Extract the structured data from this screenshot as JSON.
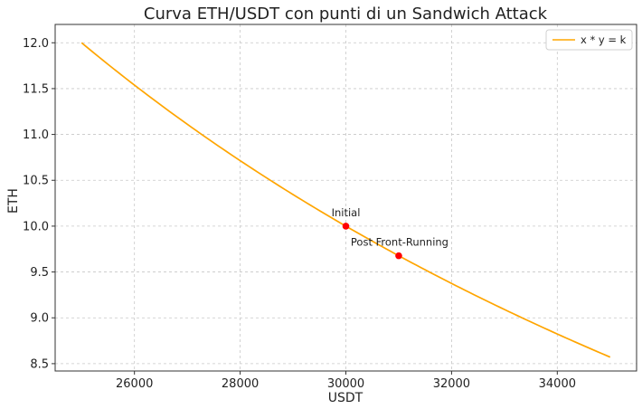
{
  "chart_data": {
    "type": "line",
    "title": "Curva ETH/USDT con punti di un Sandwich Attack",
    "xlabel": "USDT",
    "ylabel": "ETH",
    "xlim": [
      24500,
      35500
    ],
    "ylim": [
      8.42,
      12.2
    ],
    "xticks": [
      26000,
      28000,
      30000,
      32000,
      34000
    ],
    "xtick_labels": [
      "26000",
      "28000",
      "30000",
      "32000",
      "34000"
    ],
    "yticks": [
      8.5,
      9.0,
      9.5,
      10.0,
      10.5,
      11.0,
      11.5,
      12.0
    ],
    "ytick_labels": [
      "8.5",
      "9.0",
      "9.5",
      "10.0",
      "10.5",
      "11.0",
      "11.5",
      "12.0"
    ],
    "grid": true,
    "legend_position": "top-right",
    "curve_color": "#FFA500",
    "point_color": "#FF0000",
    "series": [
      {
        "name": "x * y = k",
        "k": 300000,
        "x_range": [
          25000,
          35000
        ]
      }
    ],
    "points": [
      {
        "label": "Initial",
        "x": 30000,
        "y": 10.0
      },
      {
        "label": "Post Front-Running",
        "x": 31000,
        "y": 9.677
      }
    ]
  }
}
